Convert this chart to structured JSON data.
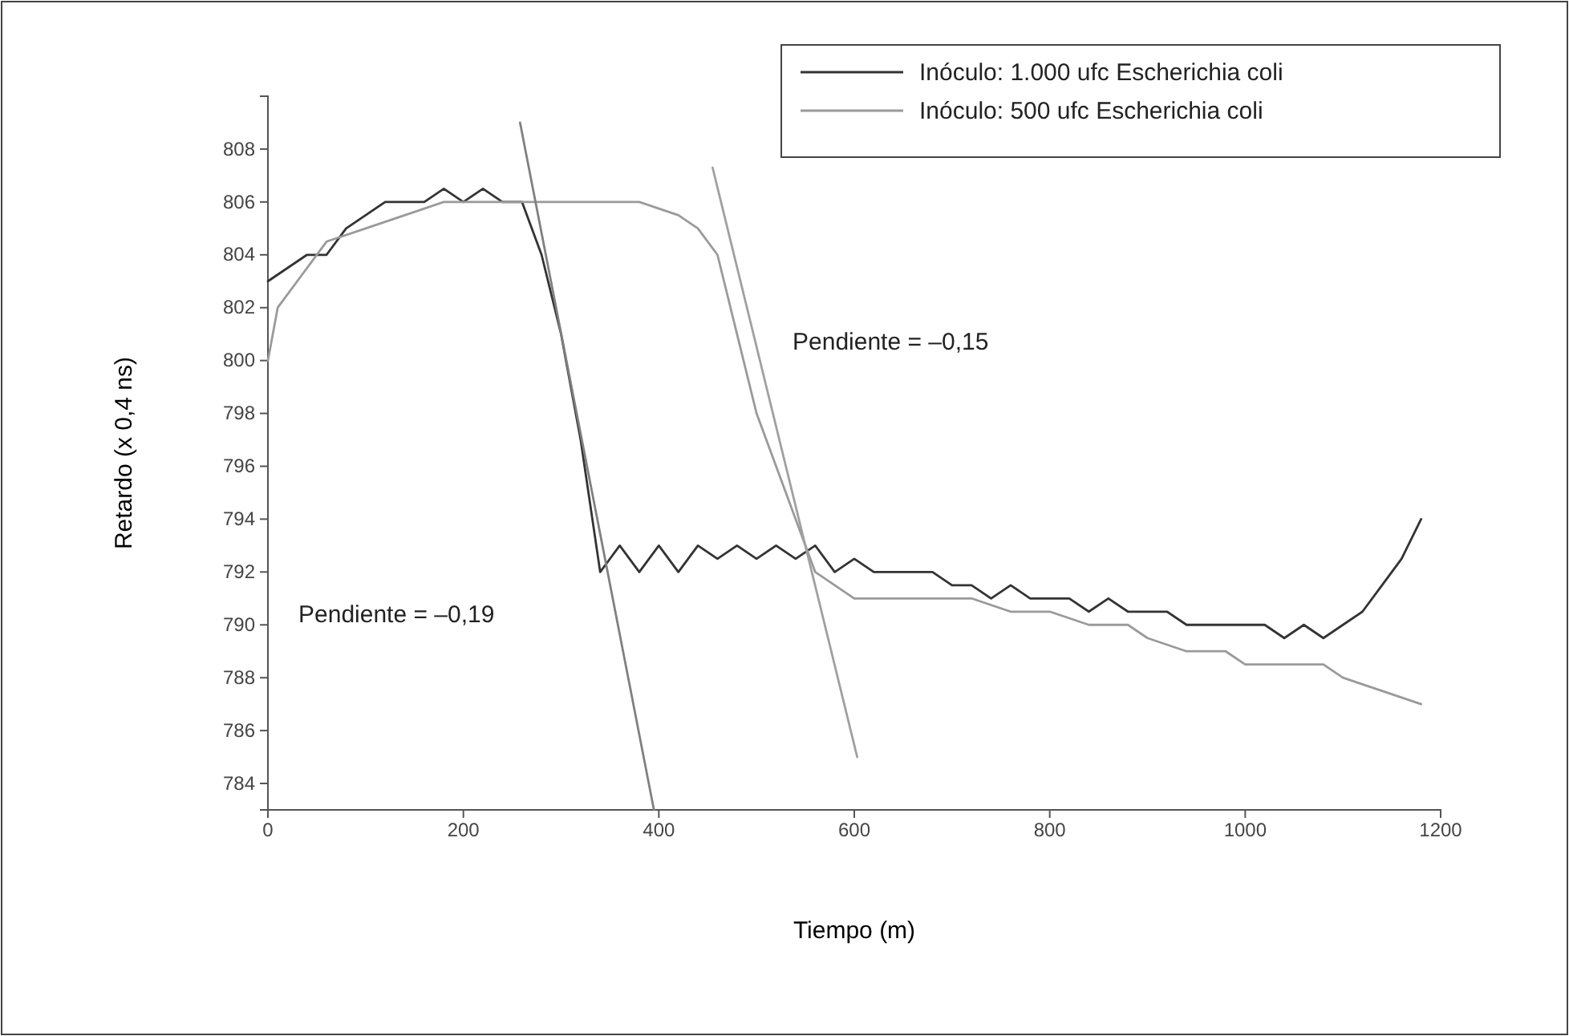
{
  "chart_data": {
    "type": "line",
    "xlabel": "Tiempo (m)",
    "ylabel": "Retardo (x 0,4 ns)",
    "xlim": [
      0,
      1200
    ],
    "ylim": [
      783,
      810
    ],
    "xticks": [
      0,
      200,
      400,
      600,
      800,
      1000,
      1200
    ],
    "yticks": [
      784,
      786,
      788,
      790,
      792,
      794,
      796,
      798,
      800,
      802,
      804,
      806,
      808
    ],
    "legend": "top right",
    "line_style": "solid",
    "marker": "none",
    "series": [
      {
        "name": "Inóculo: 1.000 ufc Escherichia coli",
        "color": "#333333",
        "x": [
          0,
          20,
          40,
          60,
          80,
          100,
          120,
          140,
          160,
          180,
          200,
          220,
          240,
          260,
          280,
          300,
          320,
          340,
          360,
          380,
          400,
          420,
          440,
          460,
          480,
          500,
          520,
          540,
          560,
          580,
          600,
          620,
          650,
          680,
          700,
          720,
          740,
          760,
          780,
          800,
          820,
          840,
          860,
          880,
          900,
          920,
          940,
          960,
          980,
          1000,
          1020,
          1040,
          1060,
          1080,
          1100,
          1120,
          1140,
          1160,
          1180
        ],
        "values": [
          803,
          803.5,
          804,
          804,
          805,
          805.5,
          806,
          806,
          806,
          806.5,
          806,
          806.5,
          806,
          806,
          804,
          801,
          797,
          792,
          793,
          792,
          793,
          792,
          793,
          792.5,
          793,
          792.5,
          793,
          792.5,
          793,
          792,
          792.5,
          792,
          792,
          792,
          791.5,
          791.5,
          791,
          791.5,
          791,
          791,
          791,
          790.5,
          791,
          790.5,
          790.5,
          790.5,
          790,
          790,
          790,
          790,
          790,
          789.5,
          790,
          789.5,
          790,
          790.5,
          791.5,
          792.5,
          794
        ]
      },
      {
        "name": "Inóculo: 500 ufc Escherichia coli",
        "color": "#9a9a9a",
        "x": [
          0,
          10,
          30,
          60,
          100,
          140,
          180,
          220,
          260,
          300,
          340,
          380,
          420,
          440,
          460,
          480,
          500,
          520,
          540,
          560,
          580,
          600,
          640,
          680,
          720,
          760,
          800,
          840,
          880,
          900,
          940,
          980,
          1000,
          1040,
          1080,
          1100,
          1140,
          1180
        ],
        "values": [
          800,
          802,
          803,
          804.5,
          805,
          805.5,
          806,
          806,
          806,
          806,
          806,
          806,
          805.5,
          805,
          804,
          801,
          798,
          796,
          794,
          792,
          791.5,
          791,
          791,
          791,
          791,
          790.5,
          790.5,
          790,
          790,
          789.5,
          789,
          789,
          788.5,
          788.5,
          788.5,
          788,
          787.5,
          787
        ]
      },
      {
        "color": "#808080",
        "x": [
          258,
          395
        ],
        "values": [
          809,
          783
        ]
      },
      {
        "color": "#a0a0a0",
        "x": [
          455,
          603
        ],
        "values": [
          807.3,
          785
        ]
      }
    ],
    "annotations": [
      "Pendiente = –0,19",
      "Pendiente = –0,15"
    ]
  }
}
